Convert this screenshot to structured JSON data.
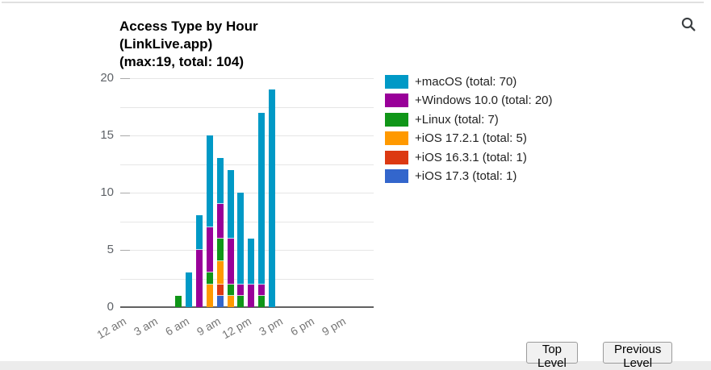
{
  "icons": {
    "search": "magnifying-glass"
  },
  "chart_data": {
    "type": "bar",
    "stacked": true,
    "title": "Access Type by Hour (LinkLive.app) (max:19, total: 104)",
    "title_lines": [
      "Access Type by Hour",
      "(LinkLive.app)",
      "(max:19, total: 104)"
    ],
    "max_value": 19,
    "total_value": 104,
    "ylim": [
      0,
      20
    ],
    "y_ticks": [
      0,
      5,
      10,
      15,
      20
    ],
    "gridline_step": 2.5,
    "grid": true,
    "legend_position": "right",
    "x_hours_range": [
      0,
      24
    ],
    "x_ticks": [
      {
        "hour": 0,
        "label": "12 am"
      },
      {
        "hour": 3,
        "label": "3 am"
      },
      {
        "hour": 6,
        "label": "6 am"
      },
      {
        "hour": 9,
        "label": "9 am"
      },
      {
        "hour": 12,
        "label": "12 pm"
      },
      {
        "hour": 15,
        "label": "3 pm"
      },
      {
        "hour": 18,
        "label": "6 pm"
      },
      {
        "hour": 21,
        "label": "9 pm"
      }
    ],
    "series": [
      {
        "key": "macOS",
        "label": "+macOS (total: 70)",
        "color": "#0099c6",
        "total": 70
      },
      {
        "key": "Windows 10.0",
        "label": "+Windows 10.0 (total: 20)",
        "color": "#990099",
        "total": 20
      },
      {
        "key": "Linux",
        "label": "+Linux (total: 7)",
        "color": "#109618",
        "total": 7
      },
      {
        "key": "iOS 17.2.1",
        "label": "+iOS 17.2.1 (total: 5)",
        "color": "#ff9900",
        "total": 5
      },
      {
        "key": "iOS 16.3.1",
        "label": "+iOS 16.3.1 (total: 1)",
        "color": "#dc3912",
        "total": 1
      },
      {
        "key": "iOS 17.3",
        "label": "+iOS 17.3 (total: 1)",
        "color": "#3366cc",
        "total": 1
      }
    ],
    "bars": [
      {
        "hour": 5,
        "total": 1,
        "segments": [
          {
            "series": "Linux",
            "value": 1
          }
        ]
      },
      {
        "hour": 6,
        "total": 3,
        "segments": [
          {
            "series": "macOS",
            "value": 3
          }
        ]
      },
      {
        "hour": 7,
        "total": 8,
        "segments": [
          {
            "series": "Windows 10.0",
            "value": 5
          },
          {
            "series": "macOS",
            "value": 3
          }
        ]
      },
      {
        "hour": 8,
        "total": 15,
        "segments": [
          {
            "series": "iOS 17.2.1",
            "value": 2
          },
          {
            "series": "Linux",
            "value": 1
          },
          {
            "series": "Windows 10.0",
            "value": 4
          },
          {
            "series": "macOS",
            "value": 8
          }
        ]
      },
      {
        "hour": 9,
        "total": 13,
        "segments": [
          {
            "series": "iOS 17.3",
            "value": 1
          },
          {
            "series": "iOS 16.3.1",
            "value": 1
          },
          {
            "series": "iOS 17.2.1",
            "value": 2
          },
          {
            "series": "Linux",
            "value": 2
          },
          {
            "series": "Windows 10.0",
            "value": 3
          },
          {
            "series": "macOS",
            "value": 4
          }
        ]
      },
      {
        "hour": 10,
        "total": 12,
        "segments": [
          {
            "series": "iOS 17.2.1",
            "value": 1
          },
          {
            "series": "Linux",
            "value": 1
          },
          {
            "series": "Windows 10.0",
            "value": 4
          },
          {
            "series": "macOS",
            "value": 6
          }
        ]
      },
      {
        "hour": 11,
        "total": 10,
        "segments": [
          {
            "series": "Linux",
            "value": 1
          },
          {
            "series": "Windows 10.0",
            "value": 1
          },
          {
            "series": "macOS",
            "value": 8
          }
        ]
      },
      {
        "hour": 12,
        "total": 6,
        "segments": [
          {
            "series": "Windows 10.0",
            "value": 2
          },
          {
            "series": "macOS",
            "value": 4
          }
        ]
      },
      {
        "hour": 13,
        "total": 17,
        "segments": [
          {
            "series": "Linux",
            "value": 1
          },
          {
            "series": "Windows 10.0",
            "value": 1
          },
          {
            "series": "macOS",
            "value": 15
          }
        ]
      },
      {
        "hour": 14,
        "total": 19,
        "segments": [
          {
            "series": "macOS",
            "value": 19
          }
        ]
      }
    ]
  },
  "footer": {
    "top_level_button": "Top Level",
    "previous_level_button": "Previous Level"
  }
}
